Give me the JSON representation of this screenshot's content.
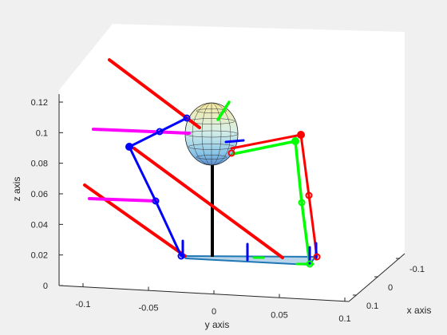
{
  "chart_data": {
    "type": "3d-plot",
    "xlabel": "x axis",
    "ylabel": "y axis",
    "zlabel": "z axis",
    "x_ticks": [
      "-0.1",
      "0",
      "0.1"
    ],
    "y_ticks": [
      "-0.1",
      "-0.05",
      "0",
      "0.05",
      "0.1"
    ],
    "z_ticks": [
      "0",
      "0.02",
      "0.04",
      "0.06",
      "0.08",
      "0.1",
      "0.12"
    ],
    "xlim": [
      -0.1,
      0.1
    ],
    "ylim": [
      -0.1,
      0.1
    ],
    "zlim": [
      0,
      0.12
    ],
    "grid": false,
    "colors": {
      "red_leg": "#ff0000",
      "green_leg": "#00ff00",
      "blue_leg": "#0000ff",
      "magenta_link": "#ff00ff",
      "mast": "#000000",
      "base": "#1f77b4"
    }
  }
}
